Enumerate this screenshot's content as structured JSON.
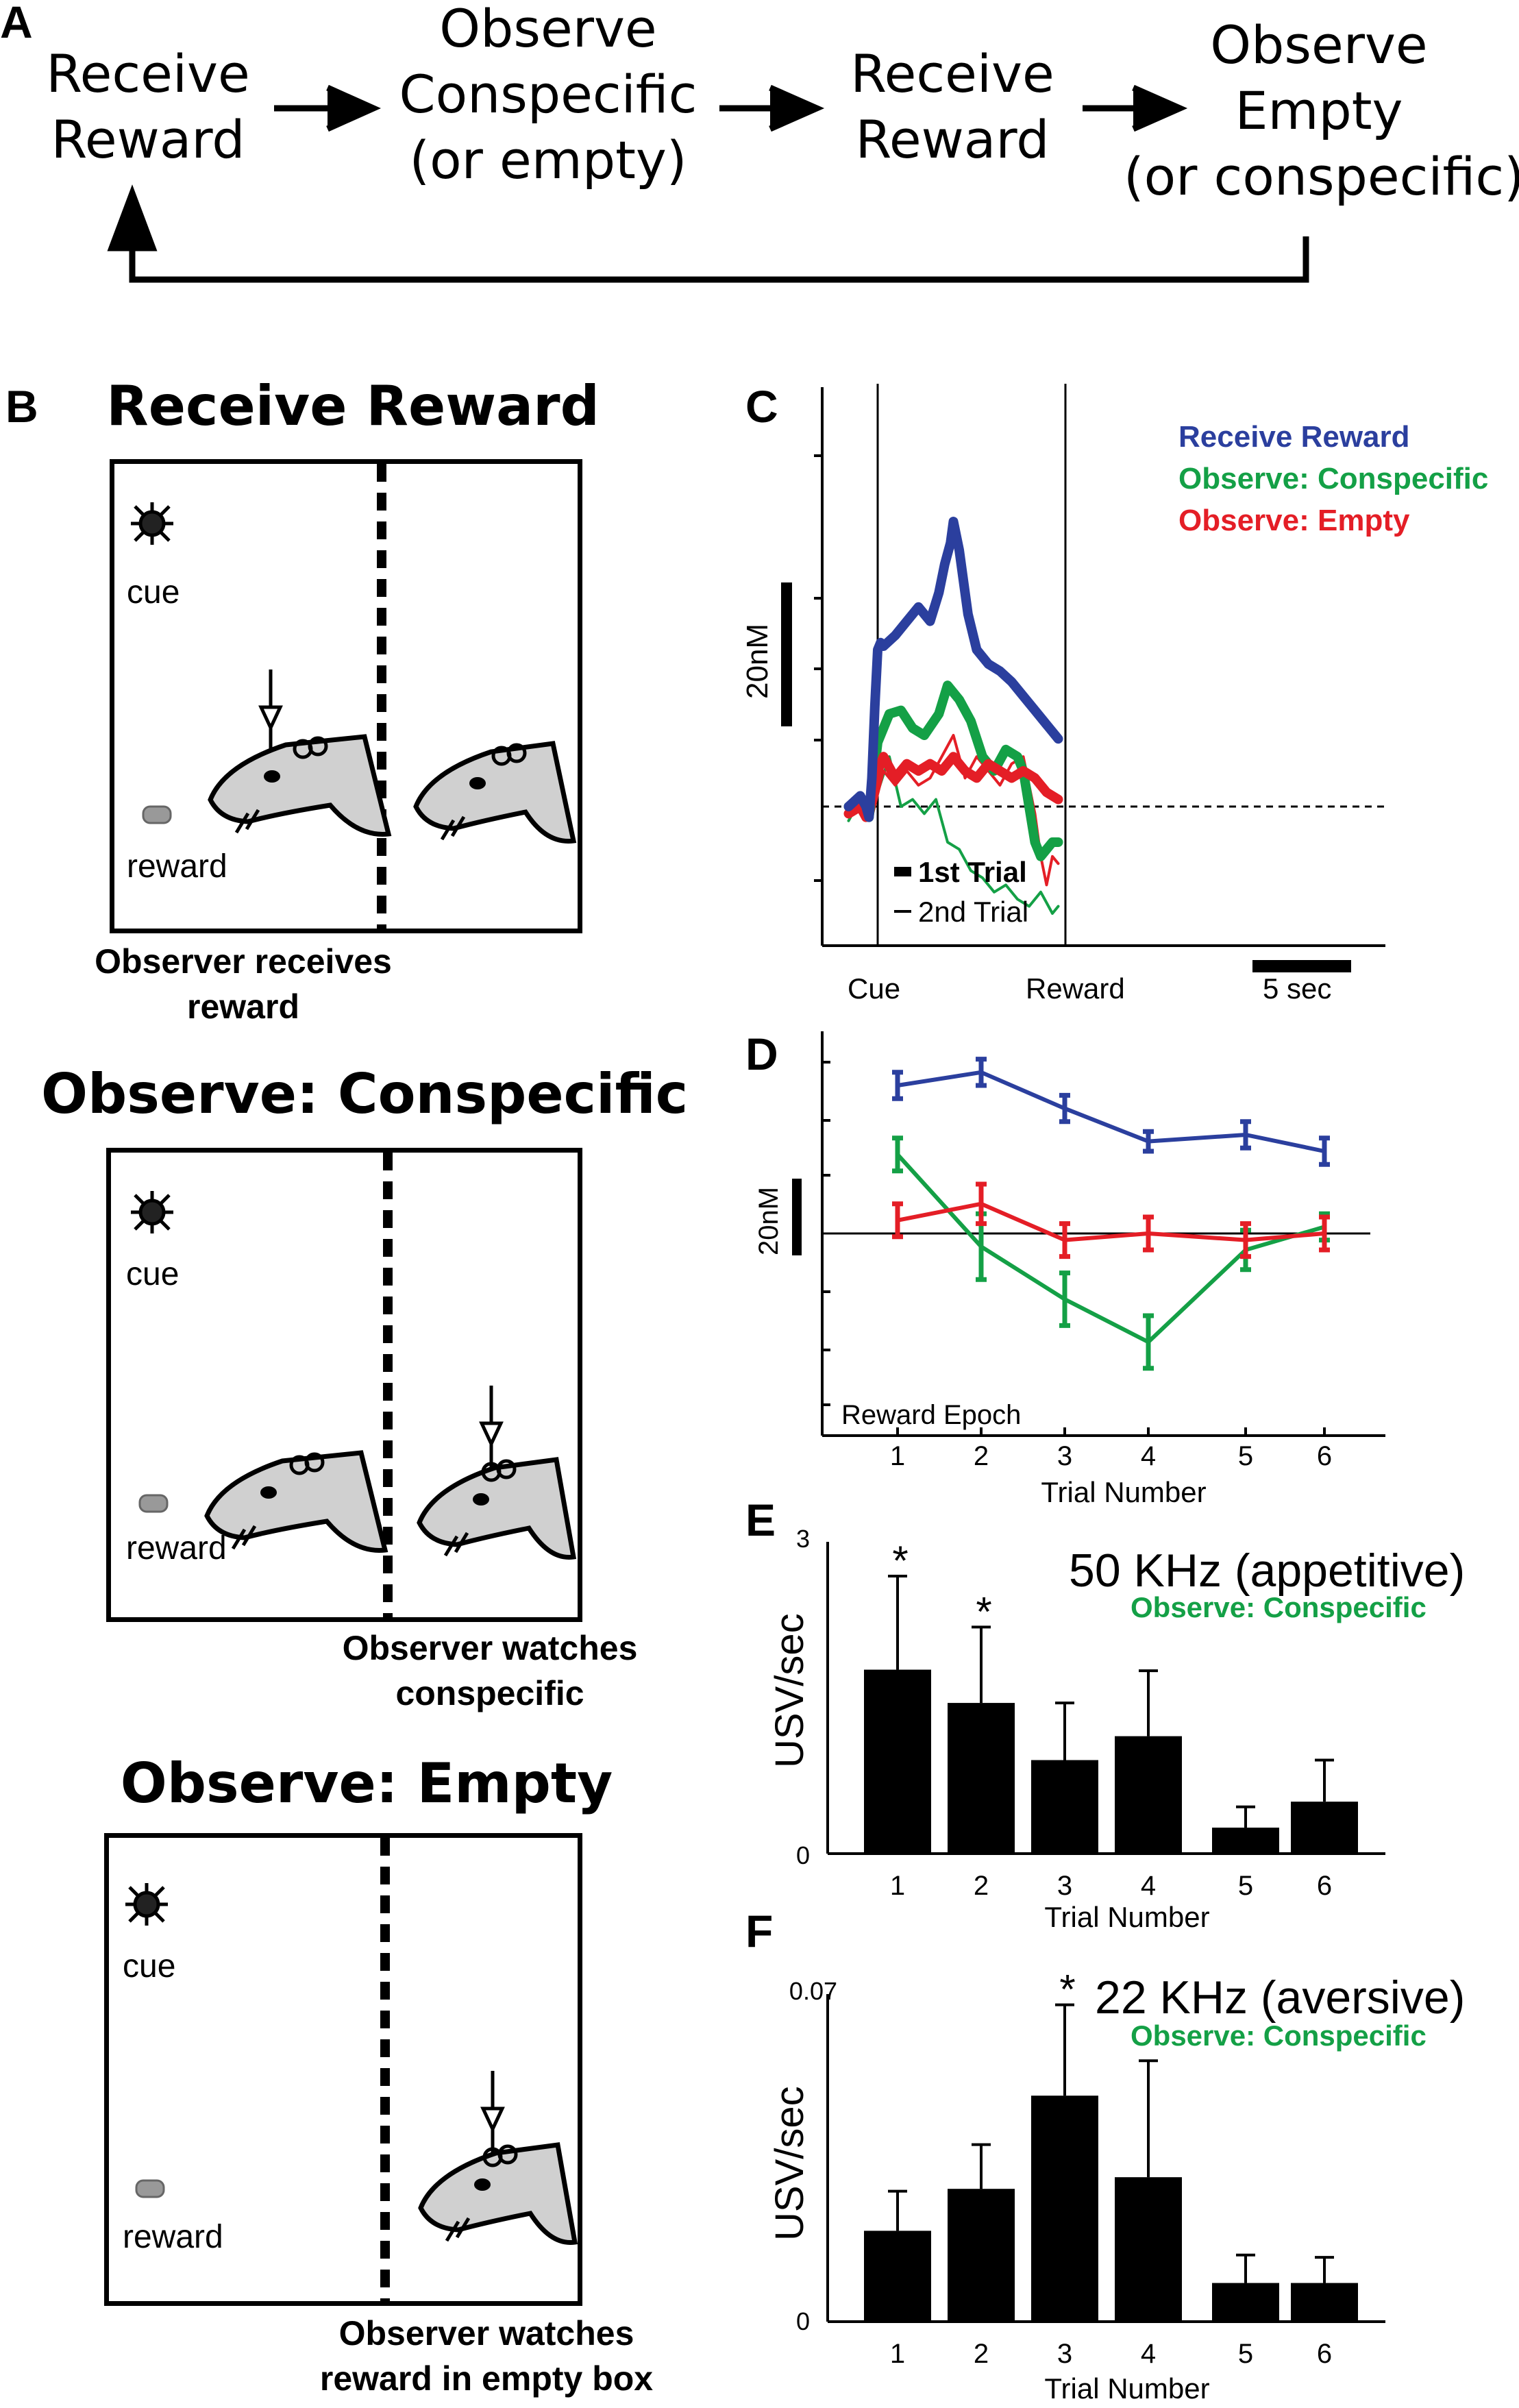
{
  "panel_labels": {
    "a": "A",
    "b": "B",
    "c": "C",
    "d": "D",
    "e": "E",
    "f": "F"
  },
  "flow": {
    "step1": [
      "Receive",
      "Reward"
    ],
    "step2": [
      "Observe",
      "Conspecific",
      "(or empty)"
    ],
    "step3": [
      "Receive",
      "Reward"
    ],
    "step4": [
      "Observe",
      "Empty",
      "(or conspecific)"
    ]
  },
  "panel_b": {
    "scenes": [
      {
        "title": "Receive Reward",
        "cue": "cue",
        "reward": "reward",
        "caption": [
          "Observer receives",
          "reward"
        ]
      },
      {
        "title": "Observe: Conspecific",
        "cue": "cue",
        "reward": "reward",
        "caption": [
          "Observer watches",
          "conspecific"
        ]
      },
      {
        "title": "Observe: Empty",
        "cue": "cue",
        "reward": "reward",
        "caption": [
          "Observer watches",
          "reward in empty box"
        ]
      }
    ]
  },
  "colors": {
    "blue": "#2b3f9e",
    "green": "#14a046",
    "red": "#e41e26",
    "black": "#000000"
  },
  "chart_data": [
    {
      "panel": "C",
      "type": "line",
      "ylabel": "20nM",
      "legend": [
        "Receive Reward",
        "Observe: Conspecific",
        "Observe: Empty"
      ],
      "trial_legend": [
        "1st Trial",
        "2nd Trial"
      ],
      "x_markers": [
        "Cue",
        "Reward"
      ],
      "scale_bar": "5 sec",
      "series": [
        {
          "name": "Receive Reward",
          "trial": "1st",
          "color": "#2b3f9e",
          "x": [
            -5,
            -3,
            -2,
            -1.5,
            -1,
            -0.5,
            0,
            0.5,
            1,
            3,
            5,
            7,
            9,
            10.5,
            11.5,
            12.5,
            13,
            14,
            15.5,
            17,
            19,
            21,
            23,
            25,
            27,
            29,
            31
          ],
          "y": [
            0,
            3,
            0,
            -3,
            8,
            28,
            44,
            46,
            45,
            48,
            52,
            56,
            52,
            60,
            68,
            74,
            80,
            72,
            54,
            44,
            40,
            38,
            35,
            31,
            27,
            23,
            19
          ]
        },
        {
          "name": "Observe: Conspecific",
          "trial": "1st",
          "color": "#14a046",
          "x": [
            -5,
            -3,
            -2,
            -1.5,
            -1,
            0,
            1,
            2,
            4,
            6,
            8,
            10.5,
            12,
            14,
            16,
            18,
            20,
            22,
            24,
            25,
            26,
            27,
            28,
            29,
            30,
            31
          ],
          "y": [
            0,
            2,
            -1,
            -3,
            4,
            18,
            22,
            26,
            27,
            22,
            20,
            26,
            34,
            30,
            24,
            14,
            10,
            16,
            14,
            10,
            0,
            -10,
            -14,
            -12,
            -10,
            -10
          ]
        },
        {
          "name": "Observe: Empty",
          "trial": "1st",
          "color": "#e41e26",
          "x": [
            -5,
            -3,
            -2,
            -1,
            0,
            1,
            3,
            5,
            7,
            9,
            11,
            13,
            15,
            17,
            19,
            21,
            23,
            25,
            27,
            29,
            31
          ],
          "y": [
            -2,
            0,
            -3,
            2,
            10,
            14,
            8,
            12,
            10,
            12,
            10,
            14,
            10,
            8,
            12,
            10,
            8,
            10,
            8,
            4,
            2
          ]
        },
        {
          "name": "Observe: Conspecific",
          "trial": "2nd",
          "color": "#14a046",
          "x": [
            -5,
            -3,
            -1,
            0,
            2,
            4,
            6,
            8,
            10,
            12,
            14,
            16,
            18,
            20,
            22,
            24,
            26,
            28,
            30,
            31
          ],
          "y": [
            -4,
            2,
            -2,
            4,
            14,
            0,
            2,
            -2,
            2,
            -10,
            -12,
            -18,
            -20,
            -24,
            -22,
            -26,
            -28,
            -24,
            -30,
            -28
          ]
        },
        {
          "name": "Observe: Empty",
          "trial": "2nd",
          "color": "#e41e26",
          "x": [
            -5,
            -3,
            -1,
            1,
            3,
            5,
            7,
            9,
            11,
            13,
            15,
            17,
            19,
            21,
            23,
            25,
            27,
            28,
            29,
            30,
            31
          ],
          "y": [
            -2,
            0,
            -3,
            10,
            6,
            10,
            6,
            8,
            14,
            20,
            8,
            14,
            10,
            6,
            12,
            14,
            -2,
            -14,
            -22,
            -14,
            -16
          ]
        }
      ]
    },
    {
      "panel": "D",
      "type": "line",
      "title": "Reward Epoch",
      "xlabel": "Trial Number",
      "ylabel": "20nM",
      "categories": [
        "1",
        "2",
        "3",
        "4",
        "5",
        "6"
      ],
      "series": [
        {
          "name": "Receive Reward",
          "color": "#2b3f9e",
          "values": [
            45,
            49,
            38,
            28,
            30,
            25
          ],
          "error": [
            4,
            4,
            4,
            3,
            4,
            4
          ]
        },
        {
          "name": "Observe: Conspecific",
          "color": "#14a046",
          "values": [
            24,
            -4,
            -20,
            -33,
            -5,
            2
          ],
          "error": [
            5,
            10,
            8,
            8,
            6,
            4
          ]
        },
        {
          "name": "Observe: Empty",
          "color": "#e41e26",
          "values": [
            4,
            9,
            -2,
            0,
            -2,
            0
          ],
          "error": [
            5,
            6,
            5,
            5,
            5,
            5
          ]
        }
      ]
    },
    {
      "panel": "E",
      "type": "bar",
      "title": "50 KHz (appetitive)",
      "subtitle": "Observe: Conspecific",
      "xlabel": "Trial Number",
      "ylabel": "USV/sec",
      "categories": [
        "1",
        "2",
        "3",
        "4",
        "5",
        "6"
      ],
      "values": [
        1.77,
        1.45,
        0.9,
        1.13,
        0.25,
        0.5
      ],
      "error": [
        0.9,
        0.73,
        0.55,
        0.63,
        0.2,
        0.4
      ],
      "significance": [
        "*",
        "*",
        "",
        "",
        "",
        ""
      ],
      "ylim": [
        0,
        3
      ],
      "yticks": [
        "0",
        "3"
      ]
    },
    {
      "panel": "F",
      "type": "bar",
      "title": "22 KHz (aversive)",
      "subtitle": "Observe: Conspecific",
      "xlabel": "Trial Number",
      "ylabel": "USV/sec",
      "categories": [
        "1",
        "2",
        "3",
        "4",
        "5",
        "6"
      ],
      "values": [
        0.0195,
        0.0285,
        0.0485,
        0.031,
        0.0083,
        0.0083
      ],
      "error": [
        0.0085,
        0.0095,
        0.0195,
        0.025,
        0.006,
        0.0055
      ],
      "significance": [
        "",
        "",
        "*",
        "",
        "",
        ""
      ],
      "ylim": [
        0,
        0.07
      ],
      "yticks": [
        "0",
        "0.07"
      ]
    }
  ]
}
